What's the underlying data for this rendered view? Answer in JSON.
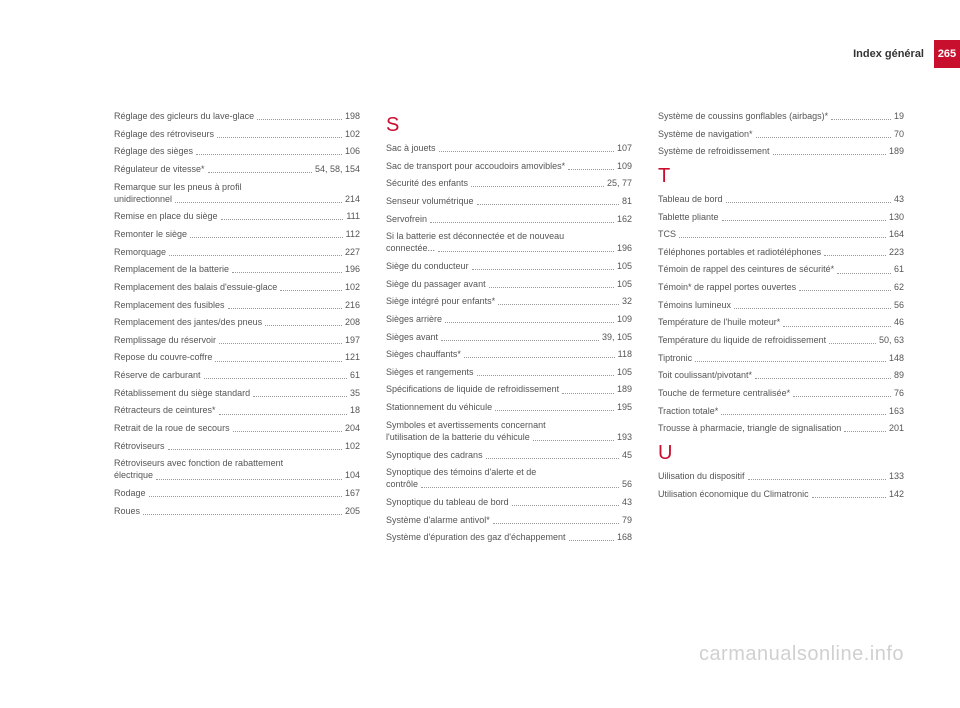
{
  "header": {
    "title": "Index général",
    "pageno": "265"
  },
  "watermark": "carmanualsonline.info",
  "columns": [
    {
      "sections": [
        {
          "letter": null,
          "entries": [
            {
              "label": "Réglage des gicleurs du lave-glace",
              "page": "198"
            },
            {
              "label": "Réglage des rétroviseurs",
              "page": "102"
            },
            {
              "label": "Réglage des sièges",
              "page": "106"
            },
            {
              "label": "Régulateur de vitesse*",
              "page": "54, 58, 154"
            },
            {
              "label": "Remarque sur les pneus à profil",
              "label2": "unidirectionnel",
              "page": "214"
            },
            {
              "label": "Remise en place du siège",
              "page": "111"
            },
            {
              "label": "Remonter le siège",
              "page": "112"
            },
            {
              "label": "Remorquage",
              "page": "227"
            },
            {
              "label": "Remplacement de la batterie",
              "page": "196"
            },
            {
              "label": "Remplacement des balais d'essuie-glace",
              "page": "102"
            },
            {
              "label": "Remplacement des fusibles",
              "page": "216"
            },
            {
              "label": "Remplacement des jantes/des pneus",
              "page": "208"
            },
            {
              "label": "Remplissage du réservoir",
              "page": "197"
            },
            {
              "label": "Repose du couvre-coffre",
              "page": "121"
            },
            {
              "label": "Réserve de carburant",
              "page": "61"
            },
            {
              "label": "Rétablissement du siège standard",
              "page": "35"
            },
            {
              "label": "Rétracteurs de ceintures*",
              "page": "18"
            },
            {
              "label": "Retrait de la roue de secours",
              "page": "204"
            },
            {
              "label": "Rétroviseurs",
              "page": "102"
            },
            {
              "label": "Rétroviseurs avec fonction de rabattement",
              "label2": "électrique",
              "page": "104"
            },
            {
              "label": "Rodage",
              "page": "167"
            },
            {
              "label": "Roues",
              "page": "205"
            }
          ]
        }
      ]
    },
    {
      "sections": [
        {
          "letter": "S",
          "entries": [
            {
              "label": "Sac à jouets",
              "page": "107"
            },
            {
              "label": "Sac de transport pour accoudoirs amovibles*",
              "page": "109"
            },
            {
              "label": "Sécurité des enfants",
              "page": "25, 77"
            },
            {
              "label": "Senseur volumétrique",
              "page": "81"
            },
            {
              "label": "Servofrein",
              "page": "162"
            },
            {
              "label": "Si la batterie est déconnectée et de nouveau",
              "label2": "connectée...",
              "page": "196"
            },
            {
              "label": "Siège du conducteur",
              "page": "105"
            },
            {
              "label": "Siège du passager avant",
              "page": "105"
            },
            {
              "label": "Siège intégré pour enfants*",
              "page": "32"
            },
            {
              "label": "Sièges arrière",
              "page": "109"
            },
            {
              "label": "Sièges avant",
              "page": "39, 105"
            },
            {
              "label": "Sièges chauffants*",
              "page": "118"
            },
            {
              "label": "Sièges et rangements",
              "page": "105"
            },
            {
              "label": "Spécifications de liquide de refroidissement",
              "page": "189"
            },
            {
              "label": "Stationnement du véhicule",
              "page": "195"
            },
            {
              "label": "Symboles et avertissements concernant",
              "label2": "l'utilisation de la batterie du véhicule",
              "page": "193"
            },
            {
              "label": "Synoptique des cadrans",
              "page": "45"
            },
            {
              "label": "Synoptique des témoins d'alerte et de",
              "label2": "contrôle",
              "page": "56"
            },
            {
              "label": "Synoptique du tableau de bord",
              "page": "43"
            },
            {
              "label": "Système d'alarme antivol*",
              "page": "79"
            },
            {
              "label": "Système d'épuration des gaz d'échappement",
              "page": "168"
            }
          ]
        }
      ]
    },
    {
      "sections": [
        {
          "letter": null,
          "entries": [
            {
              "label": "Système de coussins gonflables (airbags)*",
              "page": "19"
            },
            {
              "label": "Système de navigation*",
              "page": "70"
            },
            {
              "label": "Système de refroidissement",
              "page": "189"
            }
          ]
        },
        {
          "letter": "T",
          "entries": [
            {
              "label": "Tableau de bord",
              "page": "43"
            },
            {
              "label": "Tablette pliante",
              "page": "130"
            },
            {
              "label": "TCS",
              "page": "164"
            },
            {
              "label": "Téléphones portables et radiotéléphones",
              "page": "223"
            },
            {
              "label": "Témoin de rappel des ceintures de sécurité*",
              "page": "61"
            },
            {
              "label": "Témoin* de rappel portes ouvertes",
              "page": "62"
            },
            {
              "label": "Témoins lumineux",
              "page": "56"
            },
            {
              "label": "Température de l'huile moteur*",
              "page": "46"
            },
            {
              "label": "Température du liquide de refroidissement",
              "page": "50, 63"
            },
            {
              "label": "Tiptronic",
              "page": "148"
            },
            {
              "label": "Toit coulissant/pivotant*",
              "page": "89"
            },
            {
              "label": "Touche de fermeture centralisée*",
              "page": "76"
            },
            {
              "label": "Traction totale*",
              "page": "163"
            },
            {
              "label": "Trousse à pharmacie, triangle de signalisation",
              "page": "201"
            }
          ]
        },
        {
          "letter": "U",
          "entries": [
            {
              "label": "Uilisation du dispositif",
              "page": "133"
            },
            {
              "label": "Utilisation économique du Climatronic",
              "page": "142"
            }
          ]
        }
      ]
    }
  ]
}
